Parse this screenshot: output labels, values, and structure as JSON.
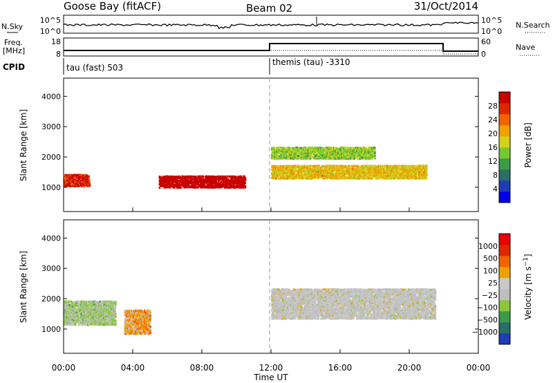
{
  "header": {
    "station": "Goose Bay (fitACF)",
    "beam": "Beam 02",
    "date": "31/Oct/2014"
  },
  "noise_panel": {
    "left_label": "N.Sky",
    "left_ticks": [
      "10^5",
      "10^0"
    ],
    "right_ticks": [
      "10^5",
      "10^0"
    ],
    "right_label": "N.Search"
  },
  "freq_panel": {
    "label_line1": "Freq.",
    "label_line2": "[MHz]",
    "left_ticks": [
      "18",
      "8"
    ],
    "right_ticks": [
      "60",
      "0"
    ],
    "right_label": "Nave"
  },
  "cpid": {
    "label": "CPID",
    "segments": [
      "tau (fast) 503",
      "themis (tau) -3310"
    ]
  },
  "chart_data": [
    {
      "type": "heatmap",
      "title": "",
      "xlabel": "Time UT",
      "ylabel": "Slant Range [km]",
      "x_ticks": [
        "00:00",
        "04:00",
        "08:00",
        "12:00",
        "16:00",
        "20:00",
        "00:00"
      ],
      "y_ticks": [
        "1000",
        "2000",
        "3000",
        "4000"
      ],
      "ylim": [
        200,
        4600
      ],
      "colorbar": {
        "label": "Power [dB]",
        "ticks": [
          "28",
          "24",
          "20",
          "16",
          "12",
          "8",
          "4"
        ],
        "range": [
          0,
          30
        ],
        "colors": [
          "#0000e6",
          "#1e3cb4",
          "#2a6e64",
          "#3c9b46",
          "#78c832",
          "#d2d21e",
          "#f0a000",
          "#f06400",
          "#dc2800",
          "#c80000"
        ]
      },
      "echo_bands": [
        {
          "t0": 0.0,
          "t1": 1.5,
          "r0": 1000,
          "r1": 1400,
          "value": 26
        },
        {
          "t0": 5.5,
          "t1": 10.5,
          "r0": 950,
          "r1": 1350,
          "value": 30
        },
        {
          "t0": 12.0,
          "t1": 21.0,
          "r0": 1250,
          "r1": 1700,
          "value": 18
        },
        {
          "t0": 12.0,
          "t1": 18.0,
          "r0": 1900,
          "r1": 2300,
          "value": 14
        }
      ]
    },
    {
      "type": "heatmap",
      "title": "",
      "xlabel": "Time UT",
      "ylabel": "Slant Range [km]",
      "x_ticks": [
        "00:00",
        "04:00",
        "08:00",
        "12:00",
        "16:00",
        "20:00",
        "00:00"
      ],
      "y_ticks": [
        "1000",
        "2000",
        "3000",
        "4000"
      ],
      "ylim": [
        200,
        4600
      ],
      "colorbar": {
        "label": "Velocity [m s^-1]",
        "ticks": [
          "1000",
          "500",
          "100",
          "25",
          "-25",
          "-100",
          "-500",
          "-1000"
        ],
        "range": [
          -1000,
          1000
        ],
        "colors": [
          "#1e3cb4",
          "#2a6e64",
          "#3c9b46",
          "#8cc83c",
          "#bebebe",
          "#c8c8c8",
          "#f0a000",
          "#f06400",
          "#dc2800",
          "#e60000"
        ]
      },
      "echo_bands": [
        {
          "t0": 0.0,
          "t1": 3.0,
          "r0": 1100,
          "r1": 1900,
          "value": -200
        },
        {
          "t0": 12.0,
          "t1": 21.5,
          "r0": 1300,
          "r1": 2300,
          "value": 0
        },
        {
          "t0": 3.5,
          "t1": 5.0,
          "r0": 800,
          "r1": 1600,
          "value": 300
        }
      ]
    }
  ]
}
